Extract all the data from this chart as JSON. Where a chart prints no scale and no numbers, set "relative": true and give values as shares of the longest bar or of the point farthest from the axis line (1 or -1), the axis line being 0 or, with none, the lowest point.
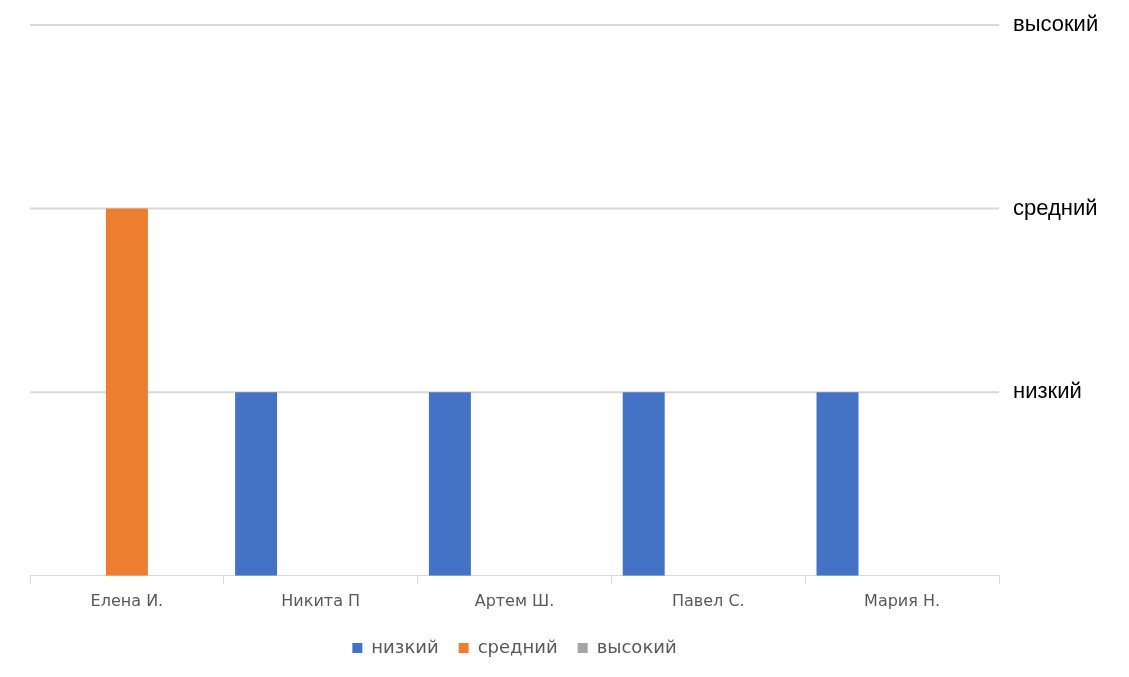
{
  "chart_data": {
    "type": "bar",
    "categories": [
      "Елена И.",
      "Никита П",
      "Артем Ш.",
      "Павел С.",
      "Мария Н."
    ],
    "series": [
      {
        "name": "низкий",
        "color": "#4472c4",
        "values": [
          null,
          0.5,
          0.5,
          0.5,
          0.5
        ]
      },
      {
        "name": "средний",
        "color": "#ed7d31",
        "values": [
          1,
          null,
          null,
          null,
          null
        ]
      },
      {
        "name": "высокий",
        "color": "#a5a5a5",
        "values": [
          null,
          null,
          null,
          null,
          null
        ]
      }
    ],
    "relative": true,
    "ref_lines": [
      {
        "axis": "y",
        "value": 0.5,
        "label": "низкий",
        "color": "#d9d9d9"
      },
      {
        "axis": "y",
        "value": 1,
        "label": "средний",
        "color": "#d9d9d9"
      },
      {
        "axis": "y",
        "value": 1.5,
        "label": "высокий",
        "color": "#d9d9d9"
      }
    ],
    "legend": "bottom"
  }
}
